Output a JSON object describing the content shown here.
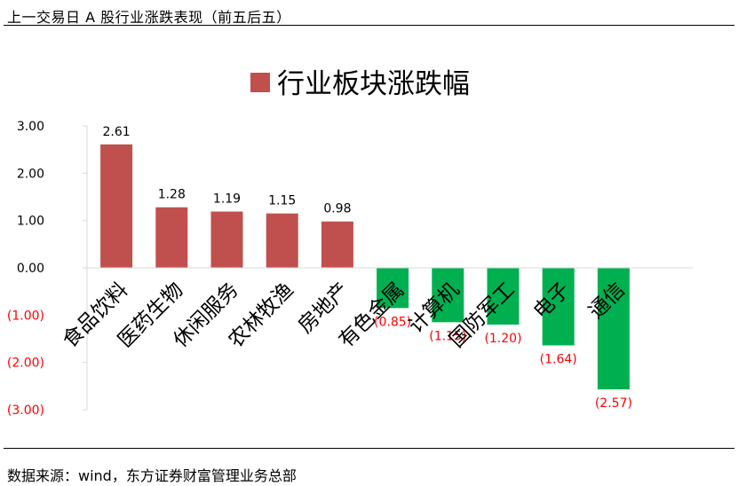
{
  "page": {
    "title": "上一交易日 A 股行业涨跌表现（前五后五）",
    "source": "数据来源：wind，东方证券财富管理业务总部"
  },
  "chart_data": {
    "type": "bar",
    "legend": "行业板块涨跌幅",
    "legend_position": "top",
    "categories": [
      "食品饮料",
      "医药生物",
      "休闲服务",
      "农林牧渔",
      "房地产",
      "有色金属",
      "计算机",
      "国防军工",
      "电子",
      "通信"
    ],
    "values": [
      2.61,
      1.28,
      1.19,
      1.15,
      0.98,
      -0.85,
      -1.15,
      -1.2,
      -1.64,
      -2.57
    ],
    "value_labels": [
      "2.61",
      "1.28",
      "1.19",
      "1.15",
      "0.98",
      "(0.85)",
      "(1.15)",
      "(1.20)",
      "(1.64)",
      "(2.57)"
    ],
    "ylim": [
      -3,
      3
    ],
    "ytick_values": [
      3,
      2,
      1,
      0,
      -1,
      -2,
      -3
    ],
    "ytick_labels": [
      "3.00",
      "2.00",
      "1.00",
      "0.00",
      "(1.00)",
      "(2.00)",
      "(3.00)"
    ],
    "grid": false,
    "colors": {
      "positive": "#c0504d",
      "negative": "#00b050",
      "negative_text": "#ff0000",
      "axis": "#d9d9d9"
    }
  }
}
